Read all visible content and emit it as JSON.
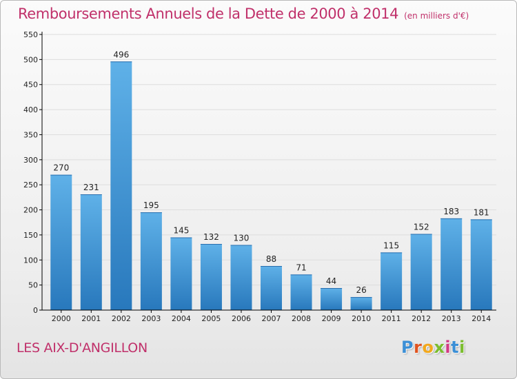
{
  "header": {
    "title": "Remboursements Annuels de la Dette de 2000 à 2014",
    "unit": "(en milliers d'€)"
  },
  "footer": {
    "commune": "LES AIX-D'ANGILLON",
    "brand": "Proxiti"
  },
  "colors": {
    "title": "#c0306a",
    "bar_top": "#5fb1e8",
    "bar_bottom": "#2878bc",
    "axis": "#000000",
    "grid": "#dddddd"
  },
  "chart_data": {
    "type": "bar",
    "categories": [
      "2000",
      "2001",
      "2002",
      "2003",
      "2004",
      "2005",
      "2006",
      "2007",
      "2008",
      "2009",
      "2010",
      "2011",
      "2012",
      "2013",
      "2014"
    ],
    "values": [
      270,
      231,
      496,
      195,
      145,
      132,
      130,
      88,
      71,
      44,
      26,
      115,
      152,
      183,
      181
    ],
    "title": "Remboursements Annuels de la Dette de 2000 à 2014",
    "xlabel": "",
    "ylabel": "",
    "ylim": [
      0,
      550
    ],
    "yticks": [
      0,
      50,
      100,
      150,
      200,
      250,
      300,
      350,
      400,
      450,
      500,
      550
    ],
    "grid": true,
    "data_labels": true
  }
}
